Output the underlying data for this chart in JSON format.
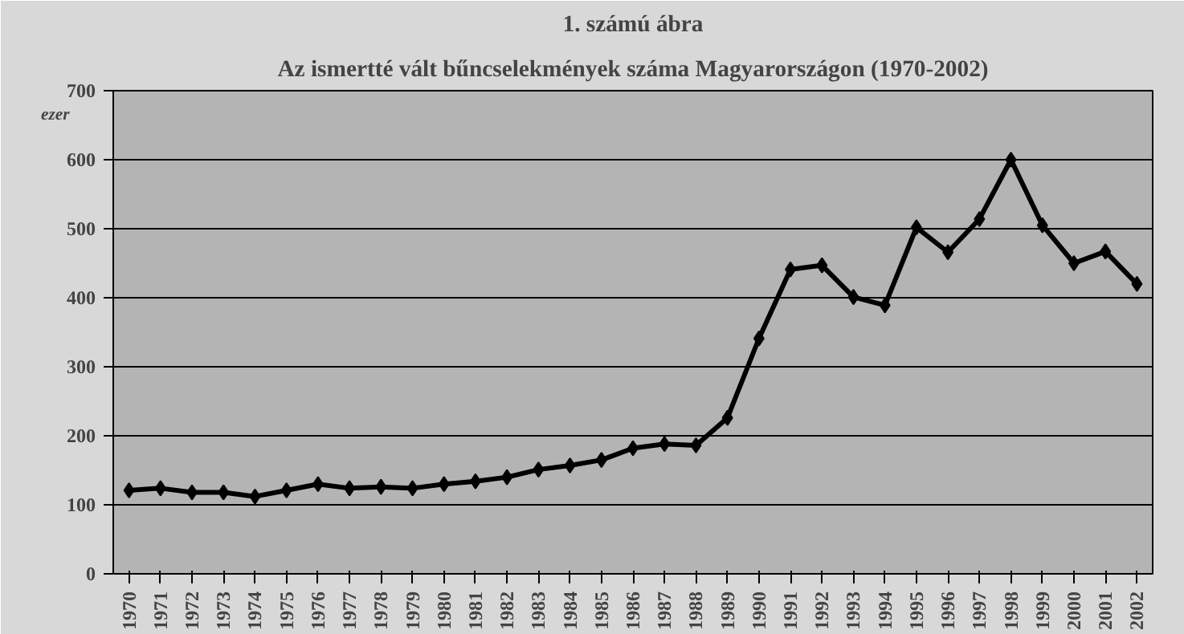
{
  "chart_data": {
    "type": "line",
    "title": "1. számú ábra",
    "subtitle": "Az ismertté vált bűncselekmények száma Magyarországon (1970-2002)",
    "ylabel": "ezer",
    "categories": [
      "1970",
      "1971",
      "1972",
      "1973",
      "1974",
      "1975",
      "1976",
      "1977",
      "1978",
      "1979",
      "1980",
      "1981",
      "1982",
      "1983",
      "1984",
      "1985",
      "1986",
      "1987",
      "1988",
      "1989",
      "1990",
      "1991",
      "1992",
      "1993",
      "1994",
      "1995",
      "1996",
      "1997",
      "1998",
      "1999",
      "2000",
      "2001",
      "2002"
    ],
    "series": [
      {
        "color": "#000000",
        "values": [
          121,
          124,
          118,
          118,
          112,
          121,
          130,
          124,
          126,
          124,
          130,
          134,
          140,
          151,
          157,
          165,
          182,
          188,
          186,
          226,
          341,
          441,
          447,
          401,
          389,
          502,
          466,
          514,
          600,
          505,
          450,
          467,
          420
        ]
      }
    ],
    "ylim": [
      0,
      700
    ],
    "yticks": [
      0,
      100,
      200,
      300,
      400,
      500,
      600,
      700
    ],
    "grid": "y",
    "marker": "diamond"
  }
}
